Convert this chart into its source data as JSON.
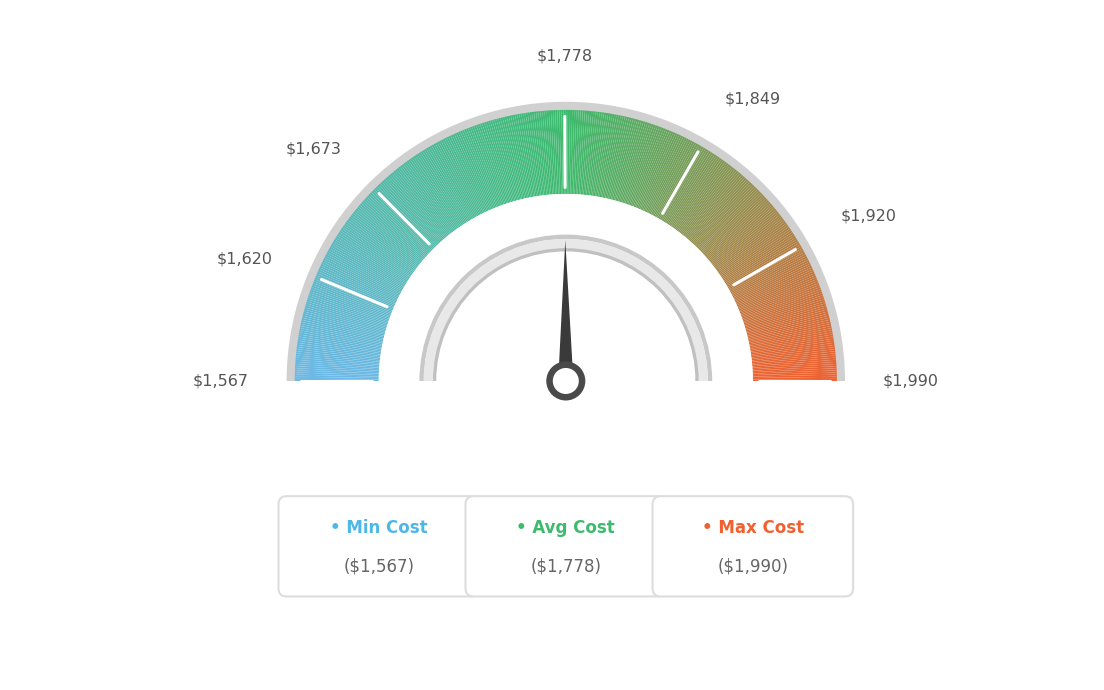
{
  "min_val": 1567,
  "max_val": 1990,
  "avg_val": 1778,
  "tick_labels": [
    "$1,567",
    "$1,620",
    "$1,673",
    "$1,778",
    "$1,849",
    "$1,920",
    "$1,990"
  ],
  "tick_values": [
    1567,
    1620,
    1673,
    1778,
    1849,
    1920,
    1990
  ],
  "legend": [
    {
      "label": "Min Cost",
      "value": "($1,567)",
      "color": "#4db8e8"
    },
    {
      "label": "Avg Cost",
      "value": "($1,778)",
      "color": "#3dba6e"
    },
    {
      "label": "Max Cost",
      "value": "($1,990)",
      "color": "#f06030"
    }
  ],
  "color_stops": [
    [
      0.0,
      [
        0.42,
        0.72,
        0.9
      ]
    ],
    [
      0.5,
      [
        0.24,
        0.73,
        0.43
      ]
    ],
    [
      1.0,
      [
        0.94,
        0.38,
        0.19
      ]
    ]
  ],
  "background_color": "#ffffff",
  "outer_ring_color": "#d8d8d8",
  "inner_ring_light": "#f0f0f0",
  "inner_ring_dark": "#c8c8c8",
  "needle_dark": "#3a3a3a",
  "needle_circle_outer": "#4a4a4a",
  "needle_circle_inner": "#ffffff"
}
